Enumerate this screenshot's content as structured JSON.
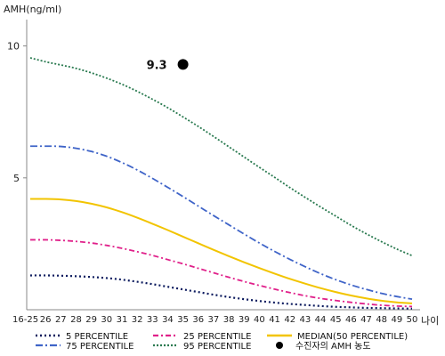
{
  "chart_data": {
    "type": "line",
    "ylabel": "AMH(ng/ml)",
    "xlabel": "나이",
    "yticks": [
      5,
      10
    ],
    "ylim": [
      0,
      11
    ],
    "x": [
      "16-25",
      "26",
      "27",
      "28",
      "29",
      "30",
      "31",
      "32",
      "33",
      "34",
      "35",
      "36",
      "37",
      "38",
      "39",
      "40",
      "41",
      "42",
      "43",
      "44",
      "45",
      "46",
      "47",
      "48",
      "49",
      "50"
    ],
    "series": [
      {
        "name": "5 PERCENTILE",
        "color": "#0b1a5e",
        "dash": "2,3",
        "width": 2.2,
        "values": [
          1.3,
          1.3,
          1.29,
          1.27,
          1.24,
          1.2,
          1.14,
          1.06,
          0.97,
          0.87,
          0.77,
          0.67,
          0.57,
          0.48,
          0.4,
          0.33,
          0.27,
          0.22,
          0.18,
          0.14,
          0.11,
          0.09,
          0.07,
          0.06,
          0.05,
          0.04
        ]
      },
      {
        "name": "25 PERCENTILE",
        "color": "#e0208a",
        "dash": "6,3,2,3",
        "width": 1.8,
        "values": [
          2.65,
          2.65,
          2.63,
          2.59,
          2.53,
          2.44,
          2.33,
          2.2,
          2.06,
          1.9,
          1.74,
          1.57,
          1.4,
          1.23,
          1.07,
          0.92,
          0.78,
          0.65,
          0.53,
          0.43,
          0.35,
          0.28,
          0.22,
          0.17,
          0.14,
          0.12
        ]
      },
      {
        "name": "MEDIAN(50 PERCENTILE)",
        "color": "#f2c400",
        "dash": "",
        "width": 2.0,
        "values": [
          4.2,
          4.2,
          4.18,
          4.12,
          4.02,
          3.88,
          3.7,
          3.49,
          3.26,
          3.02,
          2.77,
          2.52,
          2.27,
          2.03,
          1.8,
          1.58,
          1.37,
          1.17,
          0.99,
          0.82,
          0.67,
          0.54,
          0.43,
          0.34,
          0.28,
          0.24
        ]
      },
      {
        "name": "75 PERCENTILE",
        "color": "#3f64c8",
        "dash": "8,3,2,3",
        "width": 1.8,
        "values": [
          6.2,
          6.2,
          6.19,
          6.12,
          6.0,
          5.82,
          5.58,
          5.3,
          4.98,
          4.64,
          4.29,
          3.93,
          3.57,
          3.22,
          2.87,
          2.53,
          2.21,
          1.91,
          1.63,
          1.37,
          1.14,
          0.94,
          0.77,
          0.62,
          0.5,
          0.4
        ]
      },
      {
        "name": "95 PERCENTILE",
        "color": "#2a7a50",
        "dash": "2,2",
        "width": 1.8,
        "values": [
          9.55,
          9.4,
          9.28,
          9.15,
          8.98,
          8.78,
          8.55,
          8.28,
          7.98,
          7.66,
          7.31,
          6.95,
          6.57,
          6.18,
          5.79,
          5.4,
          5.02,
          4.63,
          4.26,
          3.9,
          3.55,
          3.2,
          2.88,
          2.58,
          2.3,
          2.05
        ]
      }
    ],
    "point": {
      "x": "35",
      "value": 9.3,
      "label": "9.3",
      "legend": "수진자의 AMH 농도",
      "color": "#000000"
    }
  }
}
